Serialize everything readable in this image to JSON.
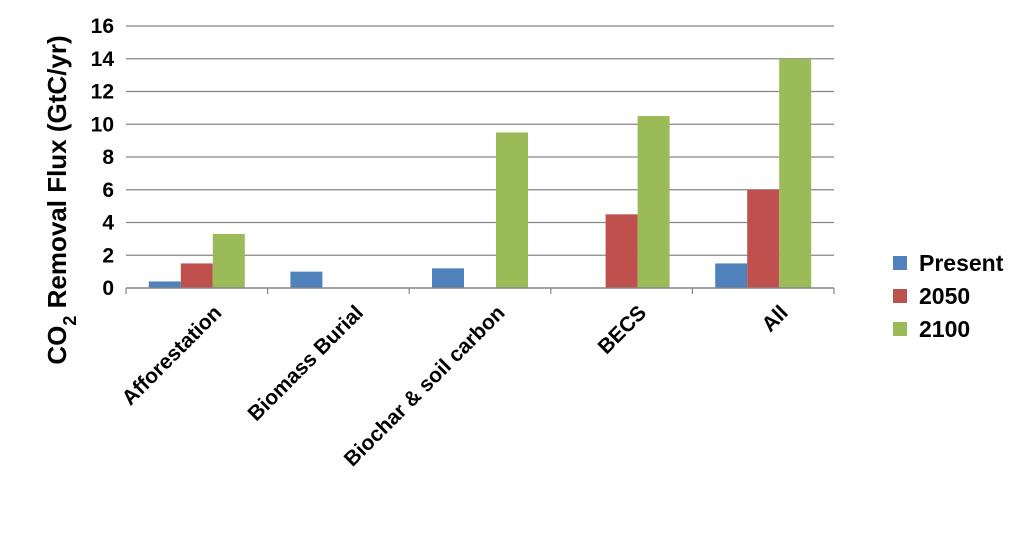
{
  "chart_data": {
    "type": "bar",
    "categories": [
      "Afforestation",
      "Biomass Burial",
      "Biochar & soil carbon",
      "BECS",
      "All"
    ],
    "series": [
      {
        "name": "Present",
        "color": "#4f81bd",
        "values": [
          0.4,
          1.0,
          1.2,
          0,
          1.5
        ]
      },
      {
        "name": "2050",
        "color": "#c0504d",
        "values": [
          1.5,
          0,
          0,
          4.5,
          6.0
        ]
      },
      {
        "name": "2100",
        "color": "#9bbb59",
        "values": [
          3.3,
          0,
          9.5,
          10.5,
          14.0
        ]
      }
    ],
    "ylabel": {
      "main": "CO",
      "subscript": "2",
      "rest": " Removal Flux (GtC/yr)"
    },
    "ylim": [
      0,
      16
    ],
    "yticks": [
      0,
      2,
      4,
      6,
      8,
      10,
      12,
      14,
      16
    ],
    "grid": true,
    "legend_position": "right"
  }
}
